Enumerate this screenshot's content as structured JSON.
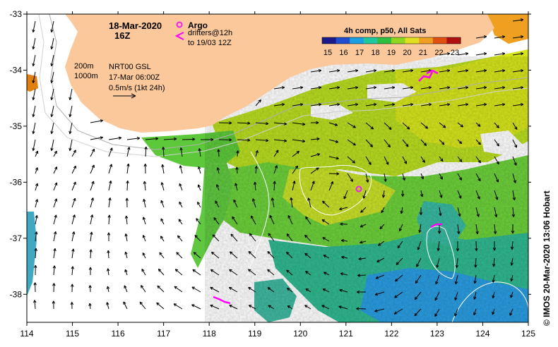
{
  "title": {
    "date": "18-Mar-2020",
    "hour": "16Z"
  },
  "legend": {
    "argo_label": "Argo",
    "drifters_line1": "drifters@12h",
    "drifters_line2": "to 19/03 12Z",
    "argo_symbol_color": "#ee22ee",
    "drifter_color": "#ff00ff"
  },
  "info": {
    "depth_200": "200m",
    "depth_1000": "1000m",
    "altimetry": "NRT00 GSL",
    "alti_date": "17-Mar 06:00Z",
    "vector_scale": "0.5m/s (1kt 24h)"
  },
  "colorbar": {
    "title": "4h comp, p50, All Sats",
    "ticks": [
      "15",
      "16",
      "17",
      "18",
      "19",
      "20",
      "21",
      "22",
      "23"
    ],
    "colors": [
      "#1a1a8c",
      "#1f4fd0",
      "#1aa0e0",
      "#20c8a0",
      "#30c040",
      "#90d820",
      "#e0e020",
      "#f0a020",
      "#e05010",
      "#b01010"
    ]
  },
  "axes": {
    "lon_ticks": [
      "114",
      "115",
      "116",
      "117",
      "118",
      "119",
      "120",
      "121",
      "122",
      "123",
      "124",
      "125"
    ],
    "lat_ticks": [
      "-33",
      "-34",
      "-35",
      "-36",
      "-37",
      "-38"
    ],
    "lon_range": [
      114,
      125
    ],
    "lat_range": [
      -38.5,
      -33
    ]
  },
  "credit": "© IMOS 20-Mar-2020 13:06 Hobart",
  "colors": {
    "land": "#fac89b",
    "sst_warm": "#cfe81e",
    "sst_mid": "#5cc83a",
    "sst_cool": "#2aa8a0",
    "sst_cold": "#2a8ce0"
  }
}
